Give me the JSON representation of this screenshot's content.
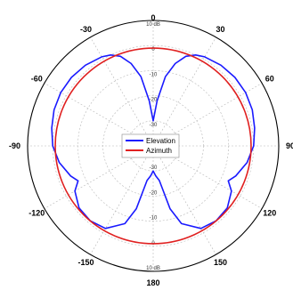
{
  "chart_data": {
    "type": "polar-line",
    "angle_labels": [
      {
        "deg": 0,
        "label": "0"
      },
      {
        "deg": 30,
        "label": "30"
      },
      {
        "deg": 60,
        "label": "60"
      },
      {
        "deg": 90,
        "label": "90"
      },
      {
        "deg": 120,
        "label": "120"
      },
      {
        "deg": 150,
        "label": "150"
      },
      {
        "deg": 180,
        "label": "180"
      },
      {
        "deg": -150,
        "label": "-150"
      },
      {
        "deg": -120,
        "label": "-120"
      },
      {
        "deg": -90,
        "label": "-90"
      },
      {
        "deg": -60,
        "label": "-60"
      },
      {
        "deg": -30,
        "label": "-30"
      }
    ],
    "radial_range_db": [
      -40,
      10
    ],
    "radial_rings": [
      {
        "value": 10,
        "top_label": "10 dB",
        "bottom_label": "10 dB"
      },
      {
        "value": 0,
        "top_label": "0",
        "bottom_label": "0"
      },
      {
        "value": -10,
        "top_label": "-10",
        "bottom_label": "-10"
      },
      {
        "value": -20,
        "top_label": "-20",
        "bottom_label": "-20"
      },
      {
        "value": -30,
        "top_label": "-30",
        "bottom_label": "-30"
      }
    ],
    "grid": true,
    "legend": {
      "placement": "center"
    },
    "series": [
      {
        "name": "Elevation",
        "color": "#1a1aff",
        "points": [
          [
            0,
            -30
          ],
          [
            5,
            -22
          ],
          [
            10,
            -12
          ],
          [
            15,
            -6
          ],
          [
            20,
            -2
          ],
          [
            25,
            0
          ],
          [
            30,
            1
          ],
          [
            40,
            2
          ],
          [
            50,
            2.5
          ],
          [
            60,
            2.5
          ],
          [
            70,
            2
          ],
          [
            80,
            1
          ],
          [
            90,
            0
          ],
          [
            100,
            -2
          ],
          [
            110,
            -5
          ],
          [
            115,
            -7
          ],
          [
            120,
            -4
          ],
          [
            130,
            -1.5
          ],
          [
            140,
            -1
          ],
          [
            150,
            -2
          ],
          [
            160,
            -7
          ],
          [
            165,
            -14
          ],
          [
            170,
            -26
          ],
          [
            175,
            -28
          ],
          [
            180,
            -30
          ],
          [
            -175,
            -28
          ],
          [
            -170,
            -26
          ],
          [
            -165,
            -14
          ],
          [
            -160,
            -7
          ],
          [
            -150,
            -2
          ],
          [
            -140,
            -1
          ],
          [
            -130,
            -1.5
          ],
          [
            -120,
            -4
          ],
          [
            -115,
            -7
          ],
          [
            -110,
            -5
          ],
          [
            -100,
            -2
          ],
          [
            -90,
            0
          ],
          [
            -80,
            1
          ],
          [
            -70,
            2
          ],
          [
            -60,
            2.5
          ],
          [
            -50,
            2.5
          ],
          [
            -40,
            2
          ],
          [
            -30,
            1
          ],
          [
            -25,
            0
          ],
          [
            -20,
            -2
          ],
          [
            -15,
            -6
          ],
          [
            -10,
            -12
          ],
          [
            -5,
            -22
          ],
          [
            0,
            -30
          ]
        ]
      },
      {
        "name": "Azimuth",
        "color": "#e02020",
        "points": [
          [
            0,
            -1
          ],
          [
            30,
            -1
          ],
          [
            60,
            -1
          ],
          [
            90,
            -1
          ],
          [
            120,
            -1
          ],
          [
            150,
            -1
          ],
          [
            180,
            -1
          ],
          [
            -150,
            -1
          ],
          [
            -120,
            -1
          ],
          [
            -90,
            -1
          ],
          [
            -60,
            -1
          ],
          [
            -30,
            -1
          ],
          [
            0,
            -1
          ]
        ]
      }
    ]
  }
}
